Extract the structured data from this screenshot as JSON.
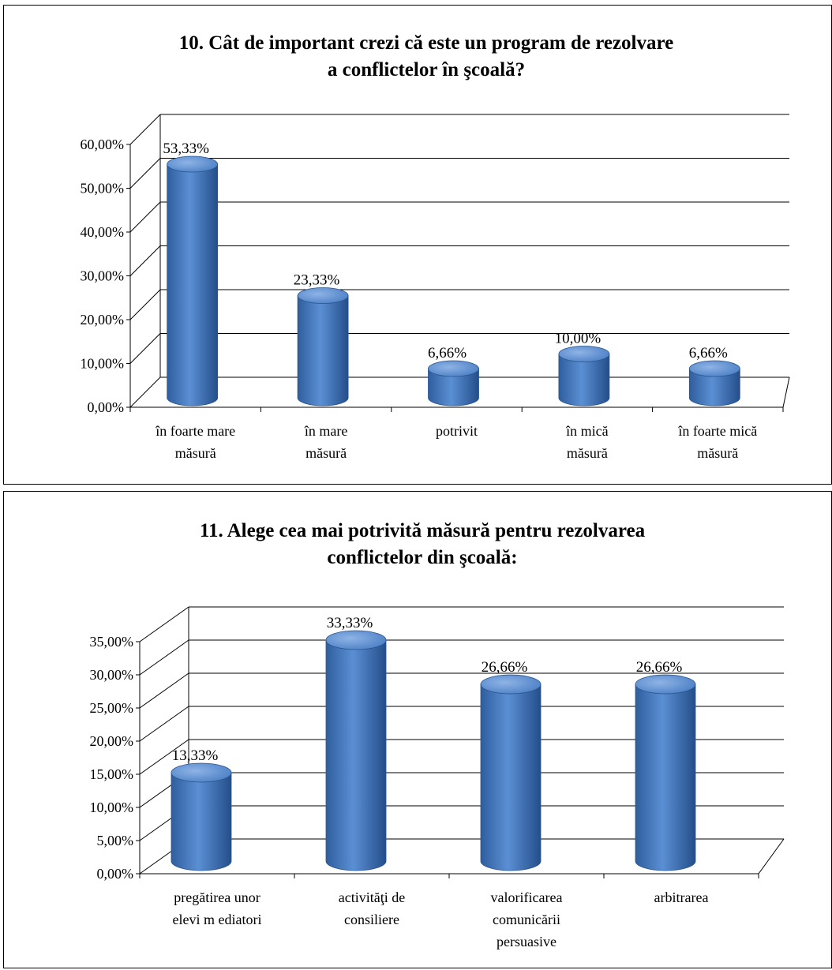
{
  "chart_data": [
    {
      "type": "bar",
      "title_lines": [
        "10. Cât de important  crezi că este un program  de rezolvare",
        "a conflictelor  în şcoală?"
      ],
      "categories": [
        [
          "în foarte mare",
          "măsură"
        ],
        [
          "în mare",
          "măsură"
        ],
        [
          "potrivit"
        ],
        [
          "în mică",
          "măsură"
        ],
        [
          "în foarte mică",
          "măsură"
        ]
      ],
      "values": [
        53.33,
        23.33,
        6.66,
        10.0,
        6.66
      ],
      "value_labels": [
        "53,33%",
        "23,33%",
        "6,66%",
        "10,00%",
        "6,66%"
      ],
      "yticks": [
        "0,00%",
        "10,00%",
        "20,00%",
        "30,00%",
        "40,00%",
        "50,00%",
        "60,00%"
      ],
      "ylim": [
        0,
        60
      ],
      "grid": true,
      "bar_color": "#4a7ec4"
    },
    {
      "type": "bar",
      "title_lines": [
        "11. Alege cea mai potrivită  măsură  pentru  rezolvarea",
        "conflictelor  din  şcoală:"
      ],
      "categories": [
        [
          "pregătirea unor",
          "elevi m ediatori"
        ],
        [
          "activităţi de",
          "consiliere"
        ],
        [
          "valorificarea",
          "comunicării",
          "persuasive"
        ],
        [
          "arbitrarea"
        ]
      ],
      "values": [
        13.33,
        33.33,
        26.66,
        26.66
      ],
      "value_labels": [
        "13,33%",
        "33,33%",
        "26,66%",
        "26,66%"
      ],
      "yticks": [
        "0,00%",
        "5,00%",
        "10,00%",
        "15,00%",
        "20,00%",
        "25,00%",
        "30,00%",
        "35,00%"
      ],
      "ylim": [
        0,
        35
      ],
      "grid": true,
      "bar_color": "#4a7ec4"
    }
  ]
}
